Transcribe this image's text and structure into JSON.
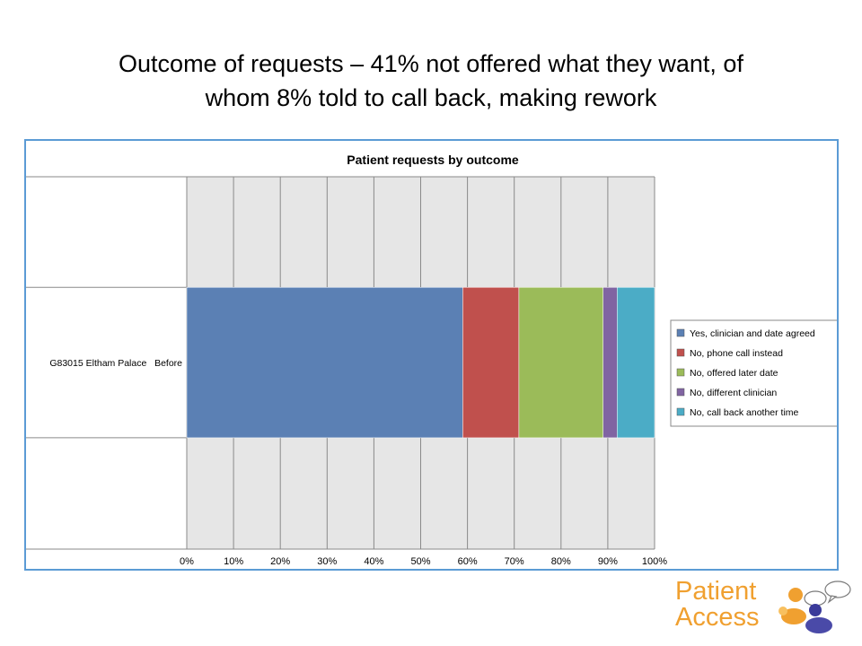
{
  "slide": {
    "title_line1": "Outcome of requests – 41% not offered what they want, of",
    "title_line2": "whom 8% told to call back, making rework"
  },
  "logo": {
    "line1": "Patient",
    "line2": "Access",
    "icon": "speech-bubble-people-icon"
  },
  "chart_data": {
    "type": "bar",
    "orientation": "horizontal",
    "stacked": true,
    "title": "Patient requests by outcome",
    "categories": [
      "G83015 Eltham Palace   Before"
    ],
    "series": [
      {
        "name": "Yes, clinician and date agreed",
        "values": [
          59
        ],
        "color": "#5b80b4"
      },
      {
        "name": "No, phone call instead",
        "values": [
          12
        ],
        "color": "#c0504d"
      },
      {
        "name": "No, offered later date",
        "values": [
          18
        ],
        "color": "#9bbb59"
      },
      {
        "name": "No, different clinician",
        "values": [
          3
        ],
        "color": "#8064a2"
      },
      {
        "name": "No, call back another time",
        "values": [
          8
        ],
        "color": "#4bacc6"
      }
    ],
    "xlim": [
      0,
      100
    ],
    "x_ticks": [
      "0%",
      "10%",
      "20%",
      "30%",
      "40%",
      "50%",
      "60%",
      "70%",
      "80%",
      "90%",
      "100%"
    ],
    "grid": true,
    "legend": "right"
  }
}
